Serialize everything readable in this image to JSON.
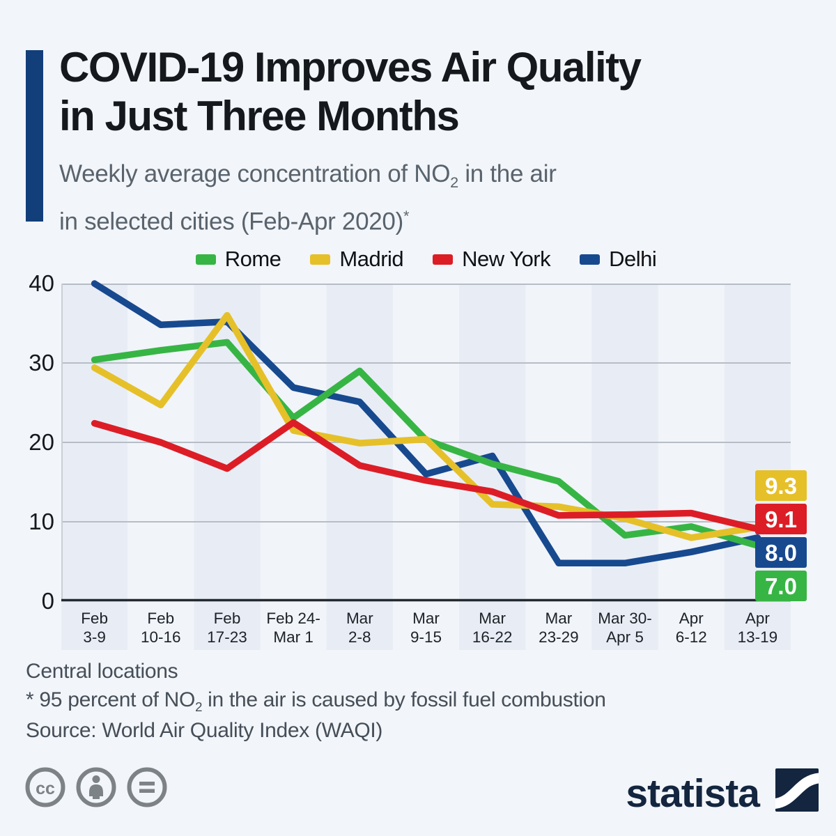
{
  "header": {
    "title_line1": "COVID-19 Improves Air Quality",
    "title_line2": "in Just Three Months",
    "subtitle_line1_pre": "Weekly average concentration of NO",
    "subtitle_line1_sub": "2",
    "subtitle_line1_post": " in the air",
    "subtitle_line2": "in selected cities (Feb-Apr 2020)",
    "subtitle_footnote_marker": "*"
  },
  "chart_data": {
    "type": "line",
    "title": "Weekly average concentration of NO2 in the air in selected cities (Feb-Apr 2020)",
    "categories": [
      "Feb 3-9",
      "Feb 10-16",
      "Feb 17-23",
      "Feb 24-Mar 1",
      "Mar 2-8",
      "Mar 9-15",
      "Mar 16-22",
      "Mar 23-29",
      "Mar 30-Apr 5",
      "Apr 6-12",
      "Apr 13-19"
    ],
    "category_labels": [
      [
        "Feb",
        "3-9"
      ],
      [
        "Feb",
        "10-16"
      ],
      [
        "Feb",
        "17-23"
      ],
      [
        "Feb 24-",
        "Mar 1"
      ],
      [
        "Mar",
        "2-8"
      ],
      [
        "Mar",
        "9-15"
      ],
      [
        "Mar",
        "16-22"
      ],
      [
        "Mar",
        "23-29"
      ],
      [
        "Mar 30-",
        "Apr 5"
      ],
      [
        "Apr",
        "6-12"
      ],
      [
        "Apr",
        "13-19"
      ]
    ],
    "series": [
      {
        "name": "Delhi",
        "color": "#17498f",
        "values": [
          40.0,
          34.8,
          35.2,
          26.9,
          25.1,
          16.0,
          18.3,
          4.8,
          4.8,
          6.2,
          8.0
        ],
        "end_label": "8.0"
      },
      {
        "name": "Rome",
        "color": "#37b544",
        "values": [
          30.4,
          31.6,
          32.6,
          23.1,
          29.0,
          20.3,
          17.3,
          15.1,
          8.3,
          9.4,
          7.0
        ],
        "end_label": "7.0"
      },
      {
        "name": "Madrid",
        "color": "#e6c029",
        "values": [
          29.4,
          24.7,
          36.0,
          21.5,
          19.9,
          20.4,
          12.2,
          11.9,
          10.4,
          8.0,
          9.3
        ],
        "end_label": "9.3"
      },
      {
        "name": "New York",
        "color": "#dc1d26",
        "values": [
          22.4,
          20.0,
          16.7,
          22.5,
          17.1,
          15.2,
          13.8,
          10.8,
          10.9,
          11.1,
          9.1
        ],
        "end_label": "9.1"
      }
    ],
    "legend_order": [
      "Rome",
      "Madrid",
      "New York",
      "Delhi"
    ],
    "xlabel": "",
    "ylabel": "",
    "ylim": [
      0,
      40
    ],
    "yticks": [
      0,
      10,
      20,
      30,
      40
    ],
    "grid": true,
    "legend_position": "top"
  },
  "footer": {
    "note1": "Central locations",
    "note2_pre": "* 95 percent of NO",
    "note2_sub": "2",
    "note2_post": " in the air is caused by fossil fuel combustion",
    "source": "Source: World Air Quality Index (WAQI)"
  },
  "branding": {
    "logo_text": "statista",
    "license_icons": [
      "cc",
      "attribution",
      "no-derivatives"
    ]
  },
  "colors": {
    "background": "#f2f5f9",
    "accent_bar": "#123e7a",
    "stripe_dark": "#e8edf5",
    "stripe_light": "#f1f4f9",
    "gridline": "#b7bdc6",
    "axis": "#23292f",
    "logo_navy": "#13253f"
  }
}
